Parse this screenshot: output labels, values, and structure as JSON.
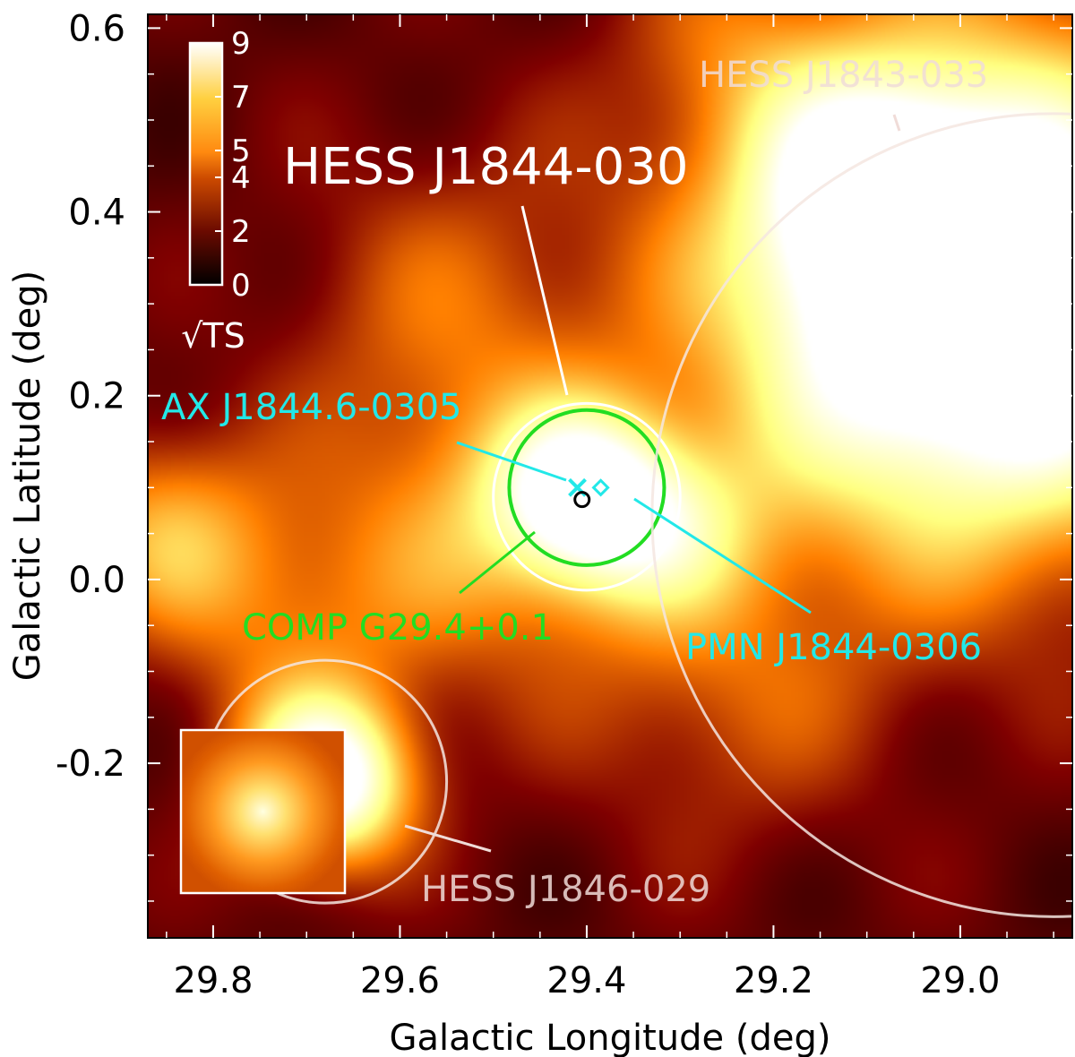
{
  "chart_data": {
    "type": "heatmap",
    "xlabel": "Galactic Longitude (deg)",
    "ylabel": "Galactic Latitude (deg)",
    "xlim": [
      29.87,
      28.88
    ],
    "ylim": [
      -0.39,
      0.615
    ],
    "x_reversed": true,
    "x_ticks": [
      29.8,
      29.6,
      29.4,
      29.2,
      29.0
    ],
    "x_tick_labels": [
      "29.8",
      "29.6",
      "29.4",
      "29.2",
      "29.0"
    ],
    "y_ticks": [
      -0.2,
      0.0,
      0.2,
      0.4,
      0.6
    ],
    "y_tick_labels": [
      "-0.2",
      "0.0",
      "0.2",
      "0.4",
      "0.6"
    ],
    "colorbar": {
      "label": "√TS",
      "range": [
        0,
        9
      ],
      "ticks": [
        0,
        2,
        4,
        5,
        7,
        9
      ],
      "tick_labels": [
        "0",
        "2",
        "4",
        "5",
        "7",
        "9"
      ],
      "colormap": "afmhot",
      "position": "top-left"
    },
    "heat_blobs": [
      {
        "l": 29.4,
        "b": 0.09,
        "sigma": 0.07,
        "amp": 6.5
      },
      {
        "l": 28.98,
        "b": 0.31,
        "sigma": 0.19,
        "amp": 11.5
      },
      {
        "l": 29.1,
        "b": 0.43,
        "sigma": 0.09,
        "amp": 3.5
      },
      {
        "l": 29.68,
        "b": -0.22,
        "sigma": 0.065,
        "amp": 8.5
      },
      {
        "l": 29.52,
        "b": 0.05,
        "sigma": 0.12,
        "amp": 3.0
      },
      {
        "l": 29.3,
        "b": 0.05,
        "sigma": 0.07,
        "amp": 2.5
      },
      {
        "l": 29.85,
        "b": 0.05,
        "sigma": 0.08,
        "amp": 3.5
      },
      {
        "l": 29.25,
        "b": -0.12,
        "sigma": 0.12,
        "amp": 2.0
      },
      {
        "l": 29.55,
        "b": 0.3,
        "sigma": 0.12,
        "amp": 2.0
      },
      {
        "l": 29.72,
        "b": -0.05,
        "sigma": 0.09,
        "amp": 2.0
      },
      {
        "l": 29.25,
        "b": 0.58,
        "sigma": 0.08,
        "amp": 1.5
      }
    ],
    "heat_base": 1.6,
    "sources": [
      {
        "name": "HESS J1844-030",
        "l": 29.4,
        "b": 0.09,
        "radius": 0.1,
        "color": "#ffffff"
      },
      {
        "name": "COMP G29.4+0.1",
        "l": 29.4,
        "b": 0.1,
        "radius": 0.083,
        "color": "#22dd22"
      },
      {
        "name": "HESS J1843-033",
        "l": 28.9,
        "b": 0.07,
        "radius": 0.43,
        "color": "#f5e6e0"
      },
      {
        "name": "HESS J1846-029",
        "l": 29.68,
        "b": -0.22,
        "radius": 0.13,
        "color": "#f5e6e0"
      }
    ],
    "markers": [
      {
        "name": "AX J1844.6-0305",
        "l": 29.41,
        "b": 0.1,
        "symbol": "x",
        "color": "#22e8e8"
      },
      {
        "name": "PMN J1844-0306",
        "l": 29.385,
        "b": 0.1,
        "symbol": "diamond",
        "color": "#22e8e8"
      },
      {
        "name": "best-fit position",
        "l": 29.405,
        "b": 0.087,
        "symbol": "circle",
        "color": "#000000"
      }
    ],
    "annotations": [
      "HESS J1844-030",
      "HESS J1843-033",
      "HESS J1846-029",
      "AX J1844.6-0305",
      "PMN J1844-0306",
      "COMP G29.4+0.1"
    ],
    "inset": {
      "description": "PSF",
      "position": "bottom-left"
    }
  },
  "colors": {
    "cyan_label": "#22e8e8",
    "green_label": "#22dd22",
    "white_label": "#ffffff",
    "faded_label": "#f0dcd8"
  }
}
